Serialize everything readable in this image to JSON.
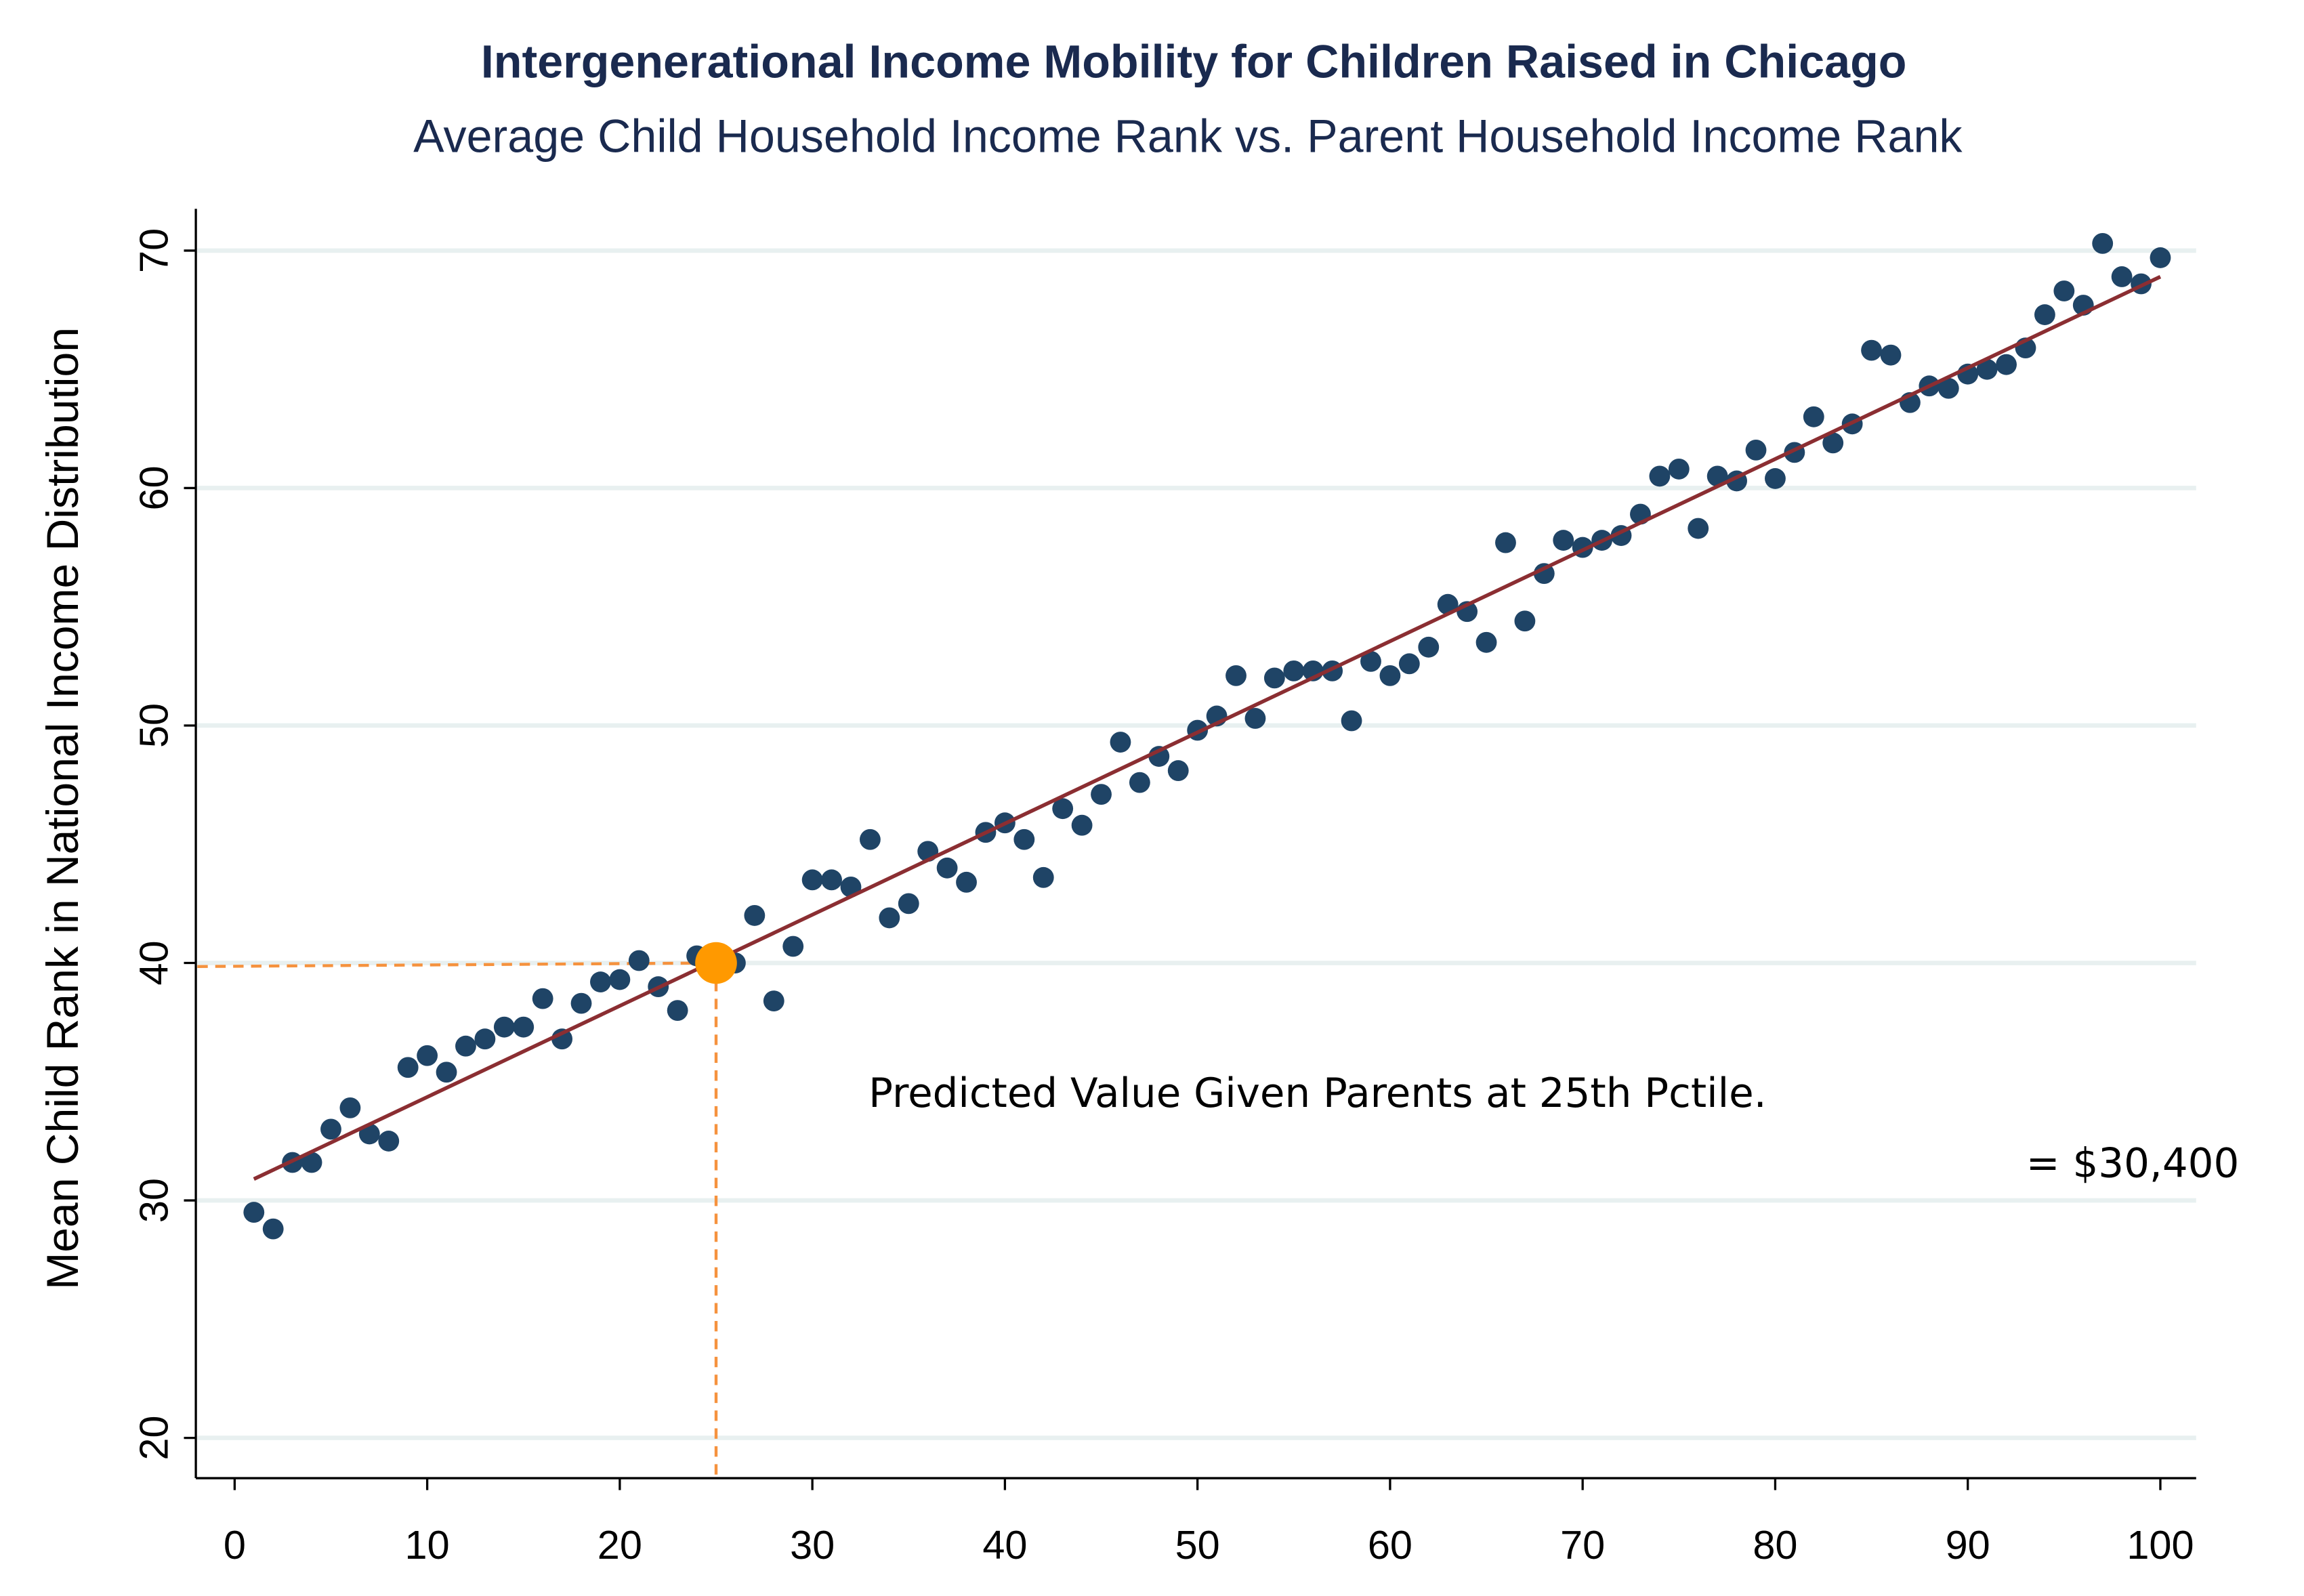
{
  "chart_data": {
    "type": "scatter",
    "title": "Intergenerational Income Mobility for Children Raised in Chicago",
    "subtitle": "Average Child Household Income Rank vs. Parent Household Income Rank",
    "xlabel": "",
    "ylabel": "Mean Child Rank in National Income Distribution",
    "xlim": [
      -2,
      102
    ],
    "ylim": [
      18.3,
      71.5
    ],
    "xticks": [
      0,
      10,
      20,
      30,
      40,
      50,
      60,
      70,
      80,
      90,
      100
    ],
    "yticks": [
      20,
      30,
      40,
      50,
      60,
      70
    ],
    "grid": "horizontal",
    "colors": {
      "points": "#1f4466",
      "fit_line": "#8b2e32",
      "highlight": "#ff9900",
      "dashed": "#f5923e",
      "grid": "#e8f0f0",
      "title": "#1a2a4f"
    },
    "x": [
      1,
      2,
      3,
      4,
      5,
      6,
      7,
      8,
      9,
      10,
      11,
      12,
      13,
      14,
      15,
      16,
      17,
      18,
      19,
      20,
      21,
      22,
      23,
      24,
      26,
      27,
      28,
      29,
      30,
      31,
      32,
      33,
      34,
      35,
      36,
      37,
      38,
      39,
      40,
      41,
      42,
      43,
      44,
      45,
      46,
      47,
      48,
      49,
      50,
      51,
      52,
      53,
      54,
      55,
      56,
      57,
      58,
      59,
      60,
      61,
      62,
      63,
      64,
      65,
      66,
      67,
      68,
      69,
      70,
      71,
      72,
      73,
      74,
      75,
      76,
      77,
      78,
      79,
      80,
      81,
      82,
      83,
      84,
      85,
      86,
      87,
      88,
      89,
      90,
      91,
      92,
      93,
      94,
      95,
      96,
      97,
      98,
      99,
      100
    ],
    "y": [
      29.5,
      28.8,
      31.6,
      31.6,
      33.0,
      33.9,
      32.8,
      32.5,
      35.6,
      36.1,
      35.4,
      36.5,
      36.8,
      37.3,
      37.3,
      38.5,
      36.8,
      38.3,
      39.2,
      39.3,
      40.1,
      39.0,
      38.0,
      40.3,
      40.0,
      42.0,
      38.4,
      40.7,
      43.5,
      43.5,
      43.2,
      45.2,
      41.9,
      42.5,
      44.7,
      44.0,
      43.4,
      45.5,
      45.9,
      45.2,
      43.6,
      46.5,
      45.8,
      47.1,
      49.3,
      47.6,
      48.7,
      48.1,
      49.8,
      50.4,
      52.1,
      50.3,
      52.0,
      52.3,
      52.3,
      52.3,
      50.2,
      52.7,
      52.1,
      52.6,
      53.3,
      55.1,
      54.8,
      53.5,
      57.7,
      54.4,
      56.4,
      57.8,
      57.5,
      57.8,
      58.0,
      58.9,
      60.5,
      60.8,
      58.3,
      60.5,
      60.3,
      61.6,
      60.4,
      61.5,
      63.0,
      61.9,
      62.7,
      65.8,
      65.6,
      63.6,
      64.3,
      64.2,
      64.8,
      65.0,
      65.2,
      65.9,
      67.3,
      68.3,
      67.7,
      70.3,
      68.9,
      68.6,
      69.7
    ],
    "fit_line": {
      "x": [
        1,
        100
      ],
      "y": [
        30.9,
        68.9
      ]
    },
    "highlight": {
      "x": 25,
      "y": 40.0
    },
    "annotations": [
      "Predicted Value Given Parents at 25th Pctile.",
      "= $30,400"
    ]
  }
}
